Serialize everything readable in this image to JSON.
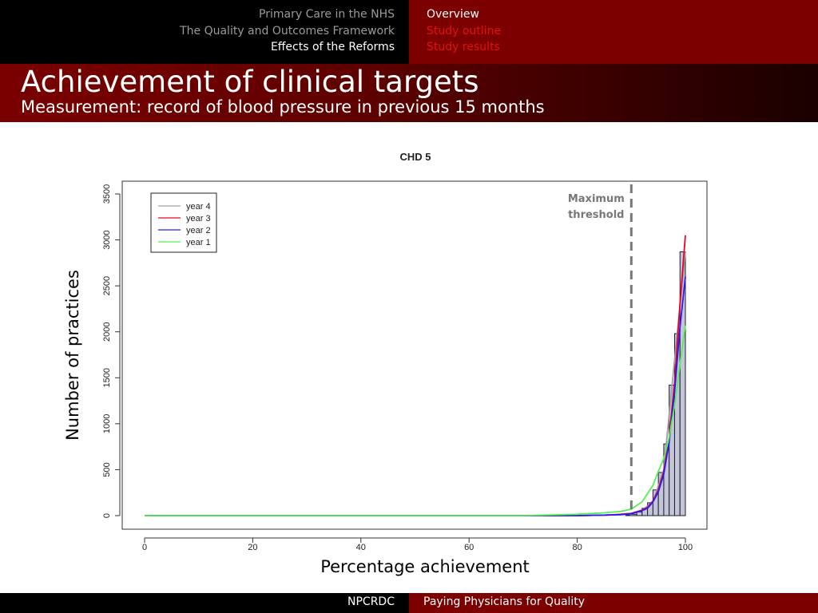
{
  "nav": {
    "sections": [
      {
        "label": "Primary Care in the NHS",
        "active": false
      },
      {
        "label": "The Quality and Outcomes Framework",
        "active": false
      },
      {
        "label": "Effects of the Reforms",
        "active": true
      }
    ],
    "subsections": [
      {
        "label": "Overview",
        "active": true
      },
      {
        "label": "Study outline",
        "active": false
      },
      {
        "label": "Study results",
        "active": false
      }
    ]
  },
  "header": {
    "title": "Achievement of clinical targets",
    "subtitle": "Measurement: record of blood pressure in previous 15 months"
  },
  "chart_data": {
    "type": "bar",
    "title": "CHD 5",
    "xlabel": "Percentage achievement",
    "ylabel": "Number of practices",
    "xlim": [
      0,
      100
    ],
    "ylim": [
      0,
      3500
    ],
    "xticks": [
      0,
      20,
      40,
      60,
      80,
      100
    ],
    "yticks": [
      0,
      500,
      1000,
      1500,
      2000,
      2500,
      3000,
      3500
    ],
    "legend_position": "top-left",
    "histogram": {
      "bin_starts": [
        89,
        90,
        91,
        92,
        93,
        94,
        95,
        96,
        97,
        98,
        99
      ],
      "bin_width": 1,
      "counts": [
        5,
        15,
        40,
        80,
        140,
        280,
        470,
        780,
        1420,
        1980,
        2870
      ],
      "fill": "#c4c6d6",
      "stroke": "#1c1c3a"
    },
    "series": [
      {
        "name": "year 4",
        "color": "#a0a0a0",
        "x": [
          0,
          50,
          80,
          85,
          88,
          90,
          92,
          94,
          96,
          98,
          100
        ],
        "y": [
          0,
          0,
          0,
          5,
          10,
          20,
          60,
          150,
          500,
          1700,
          2870
        ]
      },
      {
        "name": "year 3",
        "color": "#e8002a",
        "x": [
          0,
          50,
          80,
          85,
          88,
          90,
          92,
          93,
          94,
          95,
          96,
          97,
          98,
          99,
          100
        ],
        "y": [
          0,
          0,
          0,
          5,
          15,
          25,
          60,
          90,
          160,
          280,
          480,
          850,
          1450,
          2300,
          3050
        ]
      },
      {
        "name": "year 2",
        "color": "#2a1aff",
        "x": [
          0,
          50,
          80,
          85,
          88,
          90,
          92,
          93,
          94,
          95,
          96,
          97,
          98,
          99,
          100
        ],
        "y": [
          0,
          0,
          0,
          5,
          10,
          20,
          55,
          80,
          150,
          260,
          450,
          800,
          1350,
          2050,
          2600
        ]
      },
      {
        "name": "year 1",
        "color": "#55f050",
        "x": [
          0,
          50,
          70,
          80,
          85,
          88,
          90,
          92,
          94,
          95,
          96,
          97,
          98,
          99,
          100
        ],
        "y": [
          0,
          0,
          0,
          15,
          30,
          45,
          70,
          150,
          330,
          480,
          620,
          850,
          1200,
          1650,
          2070
        ]
      }
    ],
    "annotation": {
      "text_line1": "Maximum",
      "text_line2": "threshold",
      "x": 90
    }
  },
  "footer": {
    "left": "NPCRDC",
    "right": "Paying Physicians for Quality"
  }
}
